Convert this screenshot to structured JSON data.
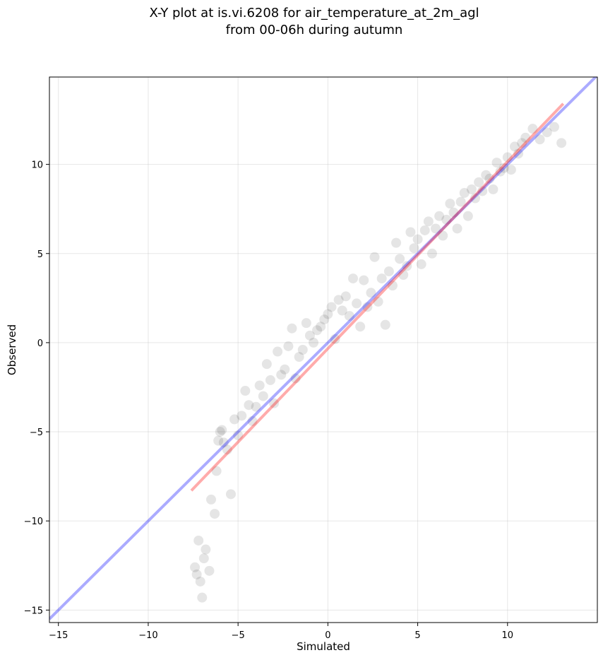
{
  "chart_data": {
    "type": "scatter",
    "title_lines": [
      "X-Y plot at is.vi.6208 for air_temperature_at_2m_agl",
      "from 00-06h during autumn"
    ],
    "xlabel": "Simulated",
    "ylabel": "Observed",
    "xlim": [
      -15.5,
      15.0
    ],
    "ylim": [
      -15.7,
      14.9
    ],
    "xticks": [
      -15,
      -10,
      -5,
      0,
      5,
      10
    ],
    "yticks": [
      -15,
      -10,
      -5,
      0,
      5,
      10
    ],
    "xtick_labels": [
      "−15",
      "−10",
      "−5",
      "0",
      "5",
      "10"
    ],
    "ytick_labels": [
      "−15",
      "−10",
      "−5",
      "0",
      "5",
      "10"
    ],
    "grid": true,
    "legend": "none",
    "point_color": "#000000",
    "point_alpha": 0.1,
    "series": [
      {
        "kind": "points",
        "approximate_trend": "observed ≈ simulated, scatter ±1.2 K",
        "x": [
          -7.4,
          -7.3,
          -7.2,
          -7.1,
          -7.0,
          -6.9,
          -6.8,
          -6.6,
          -6.5,
          -6.3,
          -6.2,
          -6.1,
          -6.0,
          -5.9,
          -5.8,
          -5.6,
          -5.4,
          -5.2,
          -5.0,
          -4.8,
          -4.6,
          -4.4,
          -4.2,
          -4.0,
          -3.8,
          -3.6,
          -3.4,
          -3.2,
          -3.0,
          -2.8,
          -2.6,
          -2.4,
          -2.2,
          -2.0,
          -1.8,
          -1.6,
          -1.4,
          -1.2,
          -1.0,
          -0.8,
          -0.6,
          -0.4,
          -0.2,
          0.0,
          0.2,
          0.4,
          0.6,
          0.8,
          1.0,
          1.2,
          1.4,
          1.6,
          1.8,
          2.0,
          2.2,
          2.4,
          2.6,
          2.8,
          3.0,
          3.2,
          3.4,
          3.6,
          3.8,
          4.0,
          4.2,
          4.4,
          4.6,
          4.8,
          5.0,
          5.2,
          5.4,
          5.6,
          5.8,
          6.0,
          6.2,
          6.4,
          6.6,
          6.8,
          7.0,
          7.2,
          7.4,
          7.6,
          7.8,
          8.0,
          8.2,
          8.4,
          8.6,
          8.8,
          9.0,
          9.2,
          9.4,
          9.6,
          9.8,
          10.0,
          10.2,
          10.4,
          10.6,
          10.8,
          11.0,
          11.4,
          11.8,
          12.2,
          12.6,
          13.0
        ],
        "y": [
          -12.6,
          -13.0,
          -11.1,
          -13.4,
          -14.3,
          -12.1,
          -11.6,
          -12.8,
          -8.8,
          -9.6,
          -7.2,
          -5.5,
          -5.0,
          -4.9,
          -5.6,
          -6.0,
          -8.5,
          -4.3,
          -5.2,
          -4.1,
          -2.7,
          -3.5,
          -4.4,
          -3.6,
          -2.4,
          -3.0,
          -1.2,
          -2.1,
          -3.4,
          -0.5,
          -1.8,
          -1.5,
          -0.2,
          0.8,
          -2.0,
          -0.8,
          -0.4,
          1.1,
          0.4,
          0.0,
          0.7,
          0.9,
          1.3,
          1.6,
          2.0,
          0.2,
          2.4,
          1.8,
          2.6,
          1.5,
          3.6,
          2.2,
          0.9,
          3.5,
          2.0,
          2.8,
          4.8,
          2.3,
          3.6,
          1.0,
          4.0,
          3.2,
          5.6,
          4.7,
          3.8,
          4.3,
          6.2,
          5.3,
          5.8,
          4.4,
          6.3,
          6.8,
          5.0,
          6.4,
          7.1,
          6.0,
          6.9,
          7.8,
          7.3,
          6.4,
          7.9,
          8.4,
          7.1,
          8.6,
          8.1,
          9.0,
          8.5,
          9.4,
          9.2,
          8.6,
          10.1,
          9.6,
          9.8,
          10.4,
          9.7,
          11.0,
          10.6,
          11.2,
          11.5,
          12.0,
          11.4,
          11.8,
          12.1,
          11.2
        ]
      }
    ],
    "lines": [
      {
        "name": "",
        "color": "#0000ff",
        "alpha": 0.33,
        "x": [
          -15.5,
          15.0
        ],
        "y": [
          -15.5,
          15.0
        ]
      },
      {
        "name": "",
        "color": "#ff0000",
        "alpha": 0.33,
        "x": [
          -7.6,
          13.1
        ],
        "y": [
          -8.3,
          13.4
        ]
      }
    ]
  }
}
